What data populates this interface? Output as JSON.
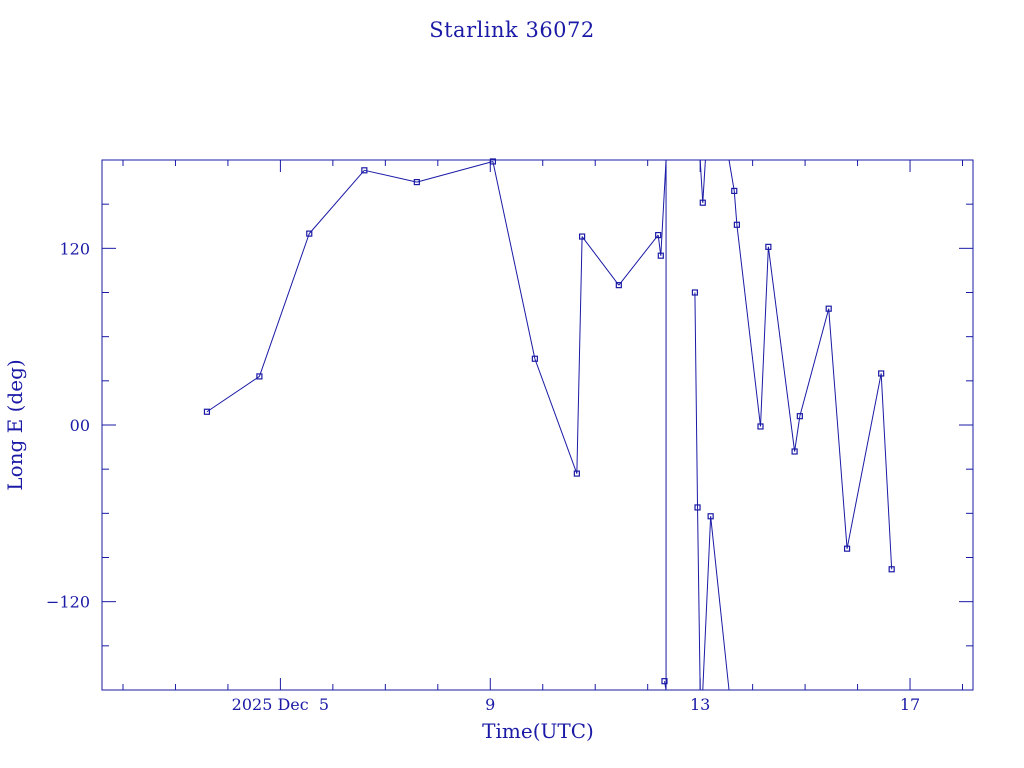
{
  "chart_data": {
    "type": "line",
    "title": "Starlink 36072",
    "xlabel": "Time(UTC)",
    "ylabel": "Long E (deg)",
    "x_unit": "days of 2025 December (UTC)",
    "xlim": [
      1.6,
      18.2
    ],
    "ylim": [
      -180,
      180
    ],
    "x_ticks": [
      {
        "value": 5,
        "label": "2025 Dec  5"
      },
      {
        "value": 9,
        "label": "9"
      },
      {
        "value": 13,
        "label": "13"
      },
      {
        "value": 17,
        "label": "17"
      }
    ],
    "y_ticks": [
      {
        "value": 120,
        "label": "120"
      },
      {
        "value": 0,
        "label": "00"
      },
      {
        "value": -120,
        "label": "−120"
      }
    ],
    "grid": false,
    "series": [
      {
        "marker": "square",
        "points": [
          {
            "x": 3.6,
            "y": 9
          },
          {
            "x": 4.6,
            "y": 33
          },
          {
            "x": 5.55,
            "y": 130
          },
          {
            "x": 6.6,
            "y": 173
          },
          {
            "x": 7.6,
            "y": 165
          },
          {
            "x": 9.05,
            "y": 179
          },
          {
            "x": 9.85,
            "y": 45
          },
          {
            "x": 10.65,
            "y": -33
          },
          {
            "x": 10.75,
            "y": 128
          },
          {
            "x": 11.45,
            "y": 95
          },
          {
            "x": 12.2,
            "y": 129
          },
          {
            "x": 12.25,
            "y": 115
          },
          {
            "x": 12.35,
            "y": 180,
            "break": true
          },
          {
            "x": 12.32,
            "y": -174
          },
          {
            "x": 12.35,
            "y": -180
          },
          {
            "x": 12.35,
            "y": 180,
            "break": true
          },
          {
            "x": 12.9,
            "y": 90
          },
          {
            "x": 12.95,
            "y": -56
          },
          {
            "x": 13.0,
            "y": -180,
            "break": true
          },
          {
            "x": 13.0,
            "y": 180
          },
          {
            "x": 13.05,
            "y": 151
          },
          {
            "x": 13.1,
            "y": 180,
            "break": true
          },
          {
            "x": 13.05,
            "y": -180
          },
          {
            "x": 13.2,
            "y": -62
          },
          {
            "x": 13.55,
            "y": -180,
            "break": true
          },
          {
            "x": 13.55,
            "y": 180
          },
          {
            "x": 13.65,
            "y": 159
          },
          {
            "x": 13.7,
            "y": 136
          },
          {
            "x": 14.15,
            "y": -1
          },
          {
            "x": 14.3,
            "y": 121
          },
          {
            "x": 14.8,
            "y": -18
          },
          {
            "x": 14.9,
            "y": 6
          },
          {
            "x": 15.45,
            "y": 79
          },
          {
            "x": 15.8,
            "y": -84
          },
          {
            "x": 16.45,
            "y": 35
          },
          {
            "x": 16.65,
            "y": -98
          }
        ]
      }
    ]
  }
}
